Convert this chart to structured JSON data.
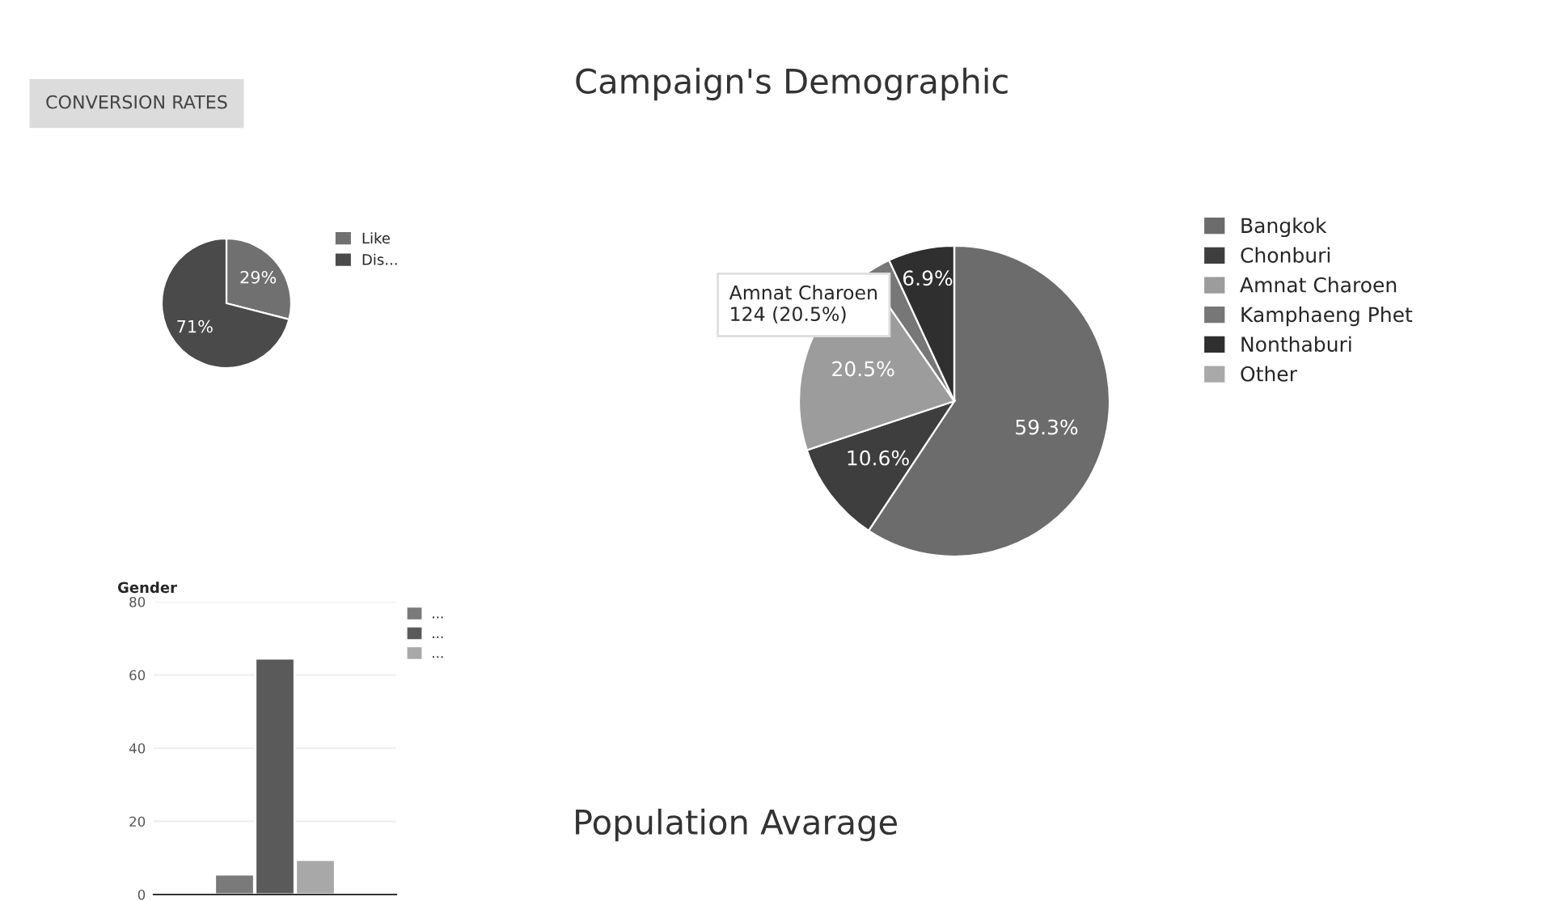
{
  "chart_data": [
    {
      "type": "pie",
      "title": "CONVERSION RATES",
      "categories": [
        "Like",
        "Dis..."
      ],
      "values": [
        29,
        71
      ],
      "colors": [
        "#707070",
        "#4a4a4a"
      ],
      "value_labels": [
        "29%",
        "71%"
      ],
      "legend": "top right"
    },
    {
      "type": "bar",
      "title": "Gender",
      "categories": [
        null
      ],
      "series": [
        {
          "name": "...",
          "color": "#7a7a7a",
          "values": [
            5.5
          ]
        },
        {
          "name": "...",
          "color": "#5a5a5a",
          "values": [
            64.5
          ]
        },
        {
          "name": "...",
          "color": "#a8a8a8",
          "values": [
            9.5
          ]
        }
      ],
      "ylim": [
        0,
        80
      ],
      "yticks": [
        0,
        20,
        40,
        60,
        80
      ],
      "grid": "y",
      "legend": "top right"
    },
    {
      "type": "pie",
      "title": "Campaign's Demographic",
      "categories": [
        "Bangkok",
        "Chonburi",
        "Amnat Charoen",
        "Kamphaeng Phet",
        "Nonthaburi",
        "Other"
      ],
      "values": [
        59.3,
        10.6,
        20.5,
        2.7,
        6.9,
        0
      ],
      "colors": [
        "#6c6c6c",
        "#3e3e3e",
        "#9c9c9c",
        "#777777",
        "#2f2f2f",
        "#a9a9a9"
      ],
      "value_labels": [
        "59.3%",
        "10.6%",
        "20.5%",
        null,
        "6.9%",
        null
      ],
      "annotations": [
        "Amnat Charoen\n124 (20.5%)"
      ],
      "legend": "right"
    },
    {
      "type": "other",
      "title": "Population Avarage"
    }
  ]
}
